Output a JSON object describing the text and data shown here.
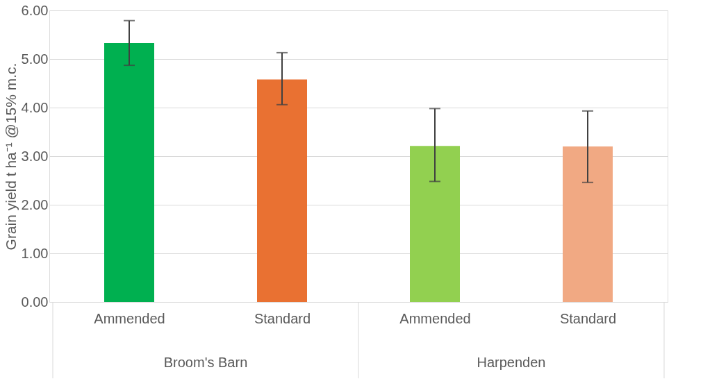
{
  "chart_data": {
    "type": "bar",
    "ylabel": "Grain yield t ha⁻¹ @15% m.c.",
    "categories": [
      "Ammended",
      "Standard",
      "Ammended",
      "Standard"
    ],
    "values": [
      5.33,
      4.58,
      3.21,
      3.2
    ],
    "colors": [
      "#00b050",
      "#e97132",
      "#92d050",
      "#f1a983"
    ],
    "errors": [
      [
        4.87,
        5.79
      ],
      [
        4.06,
        5.13
      ],
      [
        2.48,
        3.98
      ],
      [
        2.46,
        3.93
      ]
    ],
    "ylim": [
      0,
      6
    ],
    "yticks": [
      {
        "value": 0,
        "label": "0.00"
      },
      {
        "value": 1,
        "label": "1.00"
      },
      {
        "value": 2,
        "label": "2.00"
      },
      {
        "value": 3,
        "label": "3.00"
      },
      {
        "value": 4,
        "label": "4.00"
      },
      {
        "value": 5,
        "label": "5.00"
      },
      {
        "value": 6,
        "label": "6.00"
      }
    ],
    "grid": "y",
    "annotations": [
      "Broom's Barn",
      "Harpenden"
    ]
  }
}
